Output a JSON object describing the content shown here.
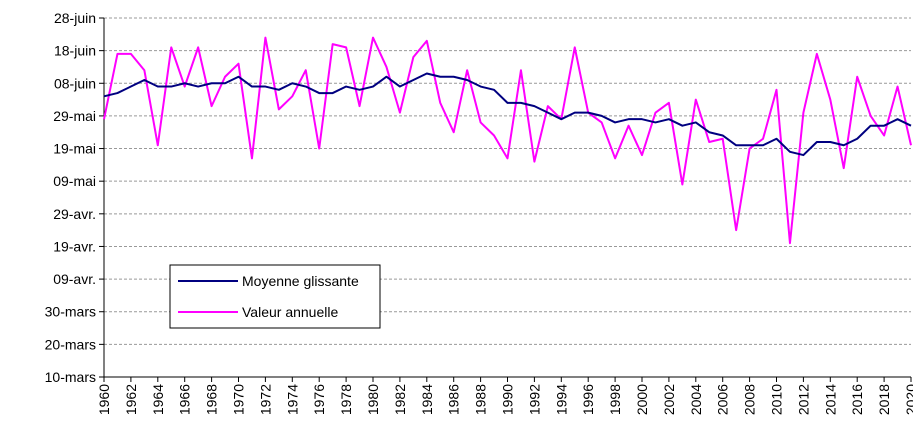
{
  "chart_data": {
    "type": "line",
    "x": [
      1960,
      1961,
      1962,
      1963,
      1964,
      1965,
      1966,
      1967,
      1968,
      1969,
      1970,
      1971,
      1972,
      1973,
      1974,
      1975,
      1976,
      1977,
      1978,
      1979,
      1980,
      1981,
      1982,
      1983,
      1984,
      1985,
      1986,
      1987,
      1988,
      1989,
      1990,
      1991,
      1992,
      1993,
      1994,
      1995,
      1996,
      1997,
      1998,
      1999,
      2000,
      2001,
      2002,
      2003,
      2004,
      2005,
      2006,
      2007,
      2008,
      2009,
      2010,
      2011,
      2012,
      2013,
      2014,
      2015,
      2016,
      2017,
      2018,
      2019,
      2020
    ],
    "series": [
      {
        "name": "Moyenne glissante",
        "color": "#000080",
        "values": [
          155,
          156,
          158,
          160,
          158,
          158,
          159,
          158,
          159,
          159,
          161,
          158,
          158,
          157,
          159,
          158,
          156,
          156,
          158,
          157,
          158,
          161,
          158,
          160,
          162,
          161,
          161,
          160,
          158,
          157,
          153,
          153,
          152,
          150,
          148,
          150,
          150,
          149,
          147,
          148,
          148,
          147,
          148,
          146,
          147,
          144,
          143,
          140,
          140,
          140,
          142,
          138,
          137,
          141,
          141,
          140,
          142,
          146,
          146,
          148,
          146
        ]
      },
      {
        "name": "Valeur annuelle",
        "color": "#ff00ff",
        "values": [
          148,
          168,
          168,
          163,
          140,
          170,
          158,
          170,
          152,
          161,
          165,
          136,
          173,
          151,
          155,
          163,
          139,
          171,
          170,
          152,
          173,
          164,
          150,
          167,
          172,
          153,
          144,
          163,
          147,
          143,
          136,
          163,
          135,
          152,
          148,
          170,
          150,
          147,
          136,
          146,
          137,
          150,
          153,
          128,
          154,
          141,
          142,
          114,
          139,
          142,
          157,
          110,
          150,
          168,
          154,
          133,
          161,
          149,
          143,
          158,
          140
        ]
      }
    ],
    "xlim": [
      1960,
      2020
    ],
    "xticks": [
      1960,
      1962,
      1964,
      1966,
      1968,
      1970,
      1972,
      1974,
      1976,
      1978,
      1980,
      1982,
      1984,
      1986,
      1988,
      1990,
      1992,
      1994,
      1996,
      1998,
      2000,
      2002,
      2004,
      2006,
      2008,
      2010,
      2012,
      2014,
      2016,
      2018,
      2020
    ],
    "ylim": [
      69,
      179
    ],
    "yticks": [
      {
        "value": 69,
        "label": "10-mars"
      },
      {
        "value": 79,
        "label": "20-mars"
      },
      {
        "value": 89,
        "label": "30-mars"
      },
      {
        "value": 99,
        "label": "09-avr."
      },
      {
        "value": 109,
        "label": "19-avr."
      },
      {
        "value": 119,
        "label": "29-avr."
      },
      {
        "value": 129,
        "label": "09-mai"
      },
      {
        "value": 139,
        "label": "19-mai"
      },
      {
        "value": 149,
        "label": "29-mai"
      },
      {
        "value": 159,
        "label": "08-juin"
      },
      {
        "value": 169,
        "label": "18-juin"
      },
      {
        "value": 179,
        "label": "28-juin"
      }
    ],
    "grid": true,
    "legend": "lower left"
  }
}
